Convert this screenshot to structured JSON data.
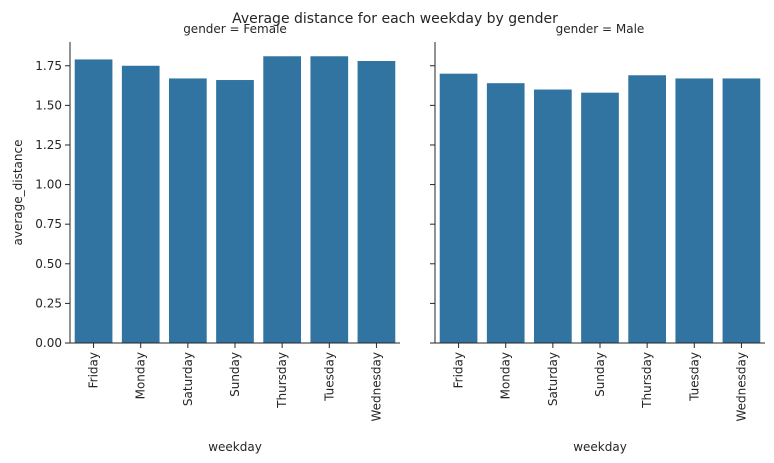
{
  "chart_data": {
    "type": "bar",
    "title": "Average distance for each weekday by gender",
    "xlabel": "weekday",
    "ylabel": "average_distance",
    "ylim": [
      0,
      1.9
    ],
    "yticks": [
      "0.00",
      "0.25",
      "0.50",
      "0.75",
      "1.00",
      "1.25",
      "1.50",
      "1.75"
    ],
    "grid": false,
    "bar_color": "#3274a1",
    "categories": [
      "Friday",
      "Monday",
      "Saturday",
      "Sunday",
      "Thursday",
      "Tuesday",
      "Wednesday"
    ],
    "facets": [
      {
        "title": "gender = Female",
        "values": [
          1.79,
          1.75,
          1.67,
          1.66,
          1.81,
          1.81,
          1.78
        ]
      },
      {
        "title": "gender = Male",
        "values": [
          1.7,
          1.64,
          1.6,
          1.58,
          1.69,
          1.67,
          1.67
        ]
      }
    ]
  }
}
